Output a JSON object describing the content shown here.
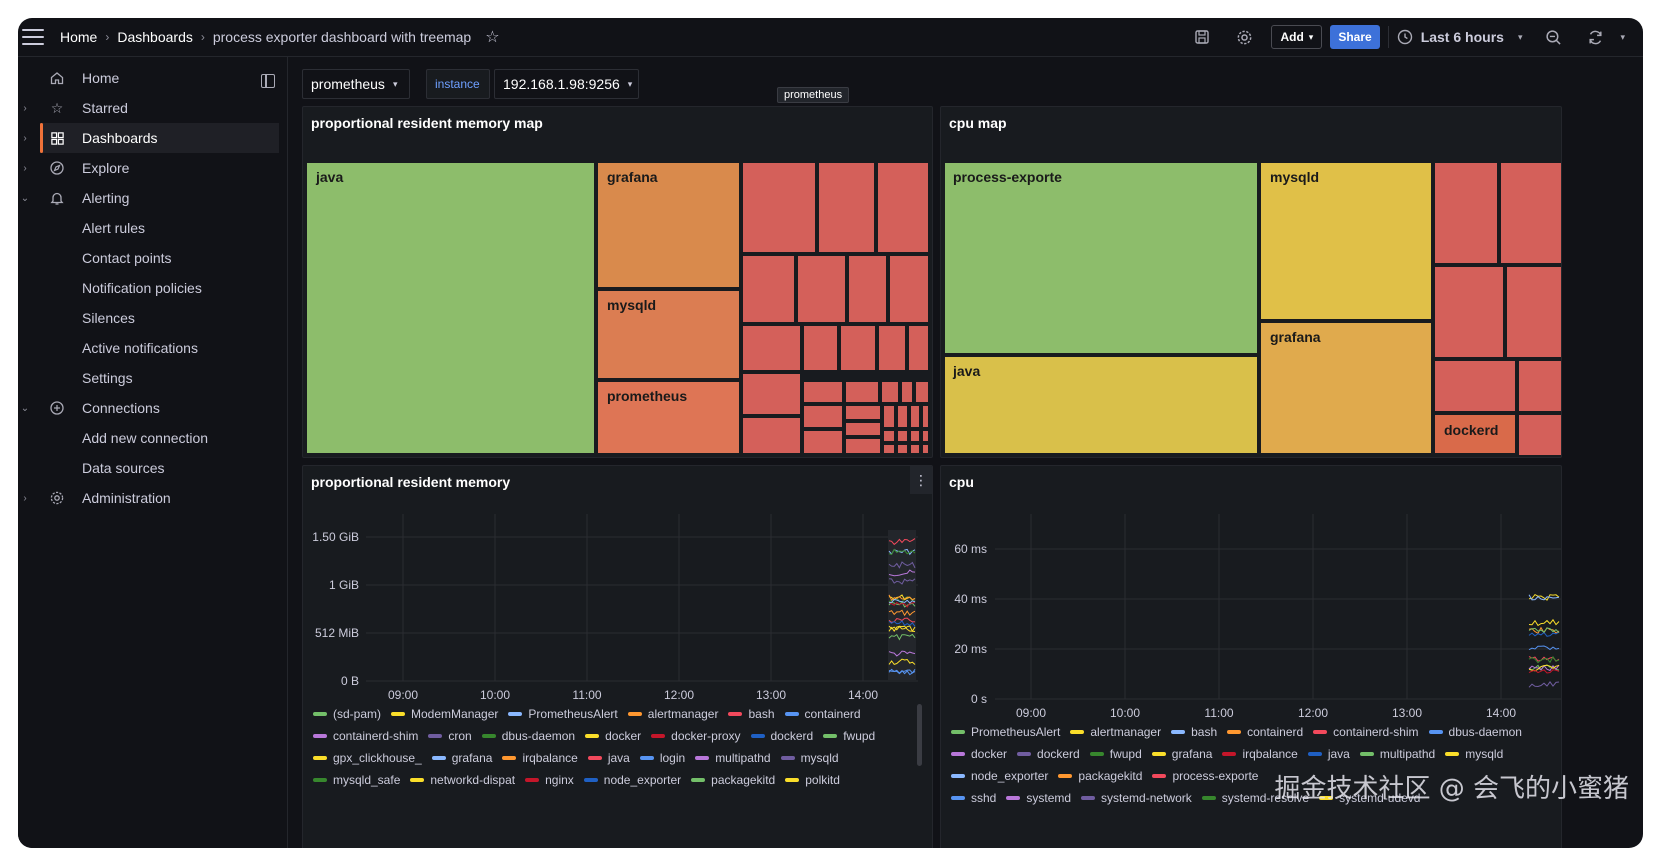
{
  "breadcrumb": {
    "home": "Home",
    "dashboards": "Dashboards",
    "current": "process exporter dashboard with treemap"
  },
  "toolbar": {
    "add_label": "Add",
    "share_label": "Share",
    "time_range": "Last 6 hours"
  },
  "sidebar": {
    "items": [
      {
        "label": "Home"
      },
      {
        "label": "Starred"
      },
      {
        "label": "Dashboards"
      },
      {
        "label": "Explore"
      },
      {
        "label": "Alerting"
      },
      {
        "label": "Alert rules"
      },
      {
        "label": "Contact points"
      },
      {
        "label": "Notification policies"
      },
      {
        "label": "Silences"
      },
      {
        "label": "Active notifications"
      },
      {
        "label": "Settings"
      },
      {
        "label": "Connections"
      },
      {
        "label": "Add new connection"
      },
      {
        "label": "Data sources"
      },
      {
        "label": "Administration"
      }
    ]
  },
  "variables": {
    "datasource": "prometheus",
    "instance_label": "instance",
    "instance_value": "192.168.1.98:9256",
    "tooltip": "prometheus"
  },
  "panels": {
    "mem_map": {
      "title": "proportional resident memory map",
      "labels": [
        "java",
        "grafana",
        "mysqld",
        "prometheus"
      ]
    },
    "cpu_map": {
      "title": "cpu map",
      "labels": [
        "process-exporte",
        "mysqld",
        "java",
        "grafana",
        "dockerd"
      ]
    },
    "mem_ts": {
      "title": "proportional resident memory",
      "yticks": [
        "1.50 GiB",
        "1 GiB",
        "512 MiB",
        "0 B"
      ],
      "xticks": [
        "09:00",
        "10:00",
        "11:00",
        "12:00",
        "13:00",
        "14:00"
      ],
      "legend_rows": [
        [
          "(sd-pam)",
          "ModemManager",
          "PrometheusAlert",
          "alertmanager",
          "bash",
          "containerd"
        ],
        [
          "containerd-shim",
          "cron",
          "dbus-daemon",
          "docker",
          "docker-proxy",
          "dockerd",
          "fwupd"
        ],
        [
          "gpx_clickhouse_",
          "grafana",
          "irqbalance",
          "java",
          "login",
          "multipathd",
          "mysqld"
        ],
        [
          "mysqld_safe",
          "networkd-dispat",
          "nginx",
          "node_exporter",
          "packagekitd",
          "polkitd"
        ]
      ]
    },
    "cpu_ts": {
      "title": "cpu",
      "yticks": [
        "60 ms",
        "40 ms",
        "20 ms",
        "0 s"
      ],
      "xticks": [
        "09:00",
        "10:00",
        "11:00",
        "12:00",
        "13:00",
        "14:00"
      ],
      "legend_rows": [
        [
          "PrometheusAlert",
          "alertmanager",
          "bash",
          "containerd",
          "containerd-shim",
          "dbus-daemon"
        ],
        [
          "docker",
          "dockerd",
          "fwupd",
          "grafana",
          "irqbalance",
          "java",
          "multipathd",
          "mysqld"
        ],
        [
          "node_exporter",
          "packagekitd",
          "process-exporte"
        ],
        [
          "sshd",
          "systemd",
          "systemd-network",
          "systemd-resolve",
          "systemd-udevd"
        ]
      ]
    }
  },
  "colors": {
    "green": "#8dbd6b",
    "orange": "#d98a4c",
    "red": "#d4605a",
    "yellow": "#d9c04a",
    "accent": "#f07239",
    "share": "#3d71d9"
  },
  "legend_colors": [
    "#73bf69",
    "#fade2a",
    "#8ab8ff",
    "#ff9830",
    "#f2495c",
    "#5794f2",
    "#b877d9",
    "#705da0",
    "#37872d",
    "#fade2a",
    "#c4162a",
    "#1f60c4"
  ],
  "watermark": "掘金技术社区 @ 会飞的小蜜猪"
}
